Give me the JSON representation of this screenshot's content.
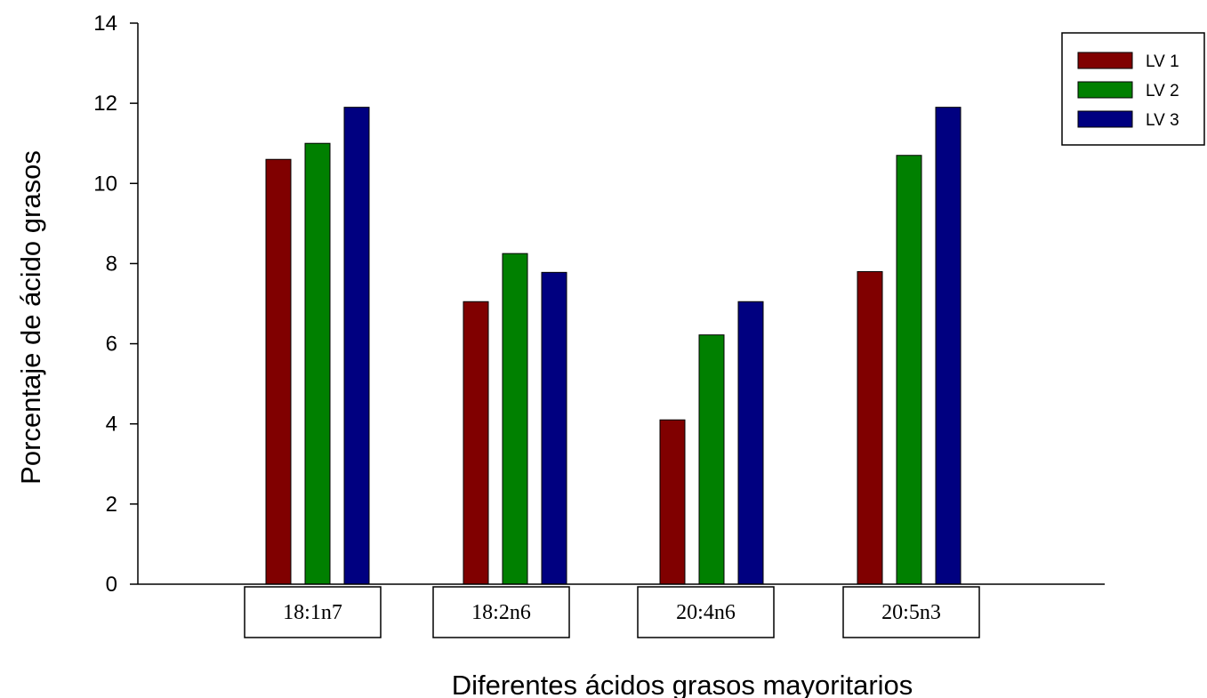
{
  "chart_data": {
    "type": "bar",
    "xlabel": "Diferentes ácidos grasos mayoritarios",
    "ylabel": "Porcentaje de ácido grasos",
    "ylim": [
      0,
      14
    ],
    "yticks": [
      0,
      2,
      4,
      6,
      8,
      10,
      12,
      14
    ],
    "categories": [
      "18:1n7",
      "18:2n6",
      "20:4n6",
      "20:5n3"
    ],
    "series": [
      {
        "name": "LV 1",
        "color": "#800000",
        "values": [
          10.6,
          7.05,
          4.1,
          7.8
        ]
      },
      {
        "name": "LV 2",
        "color": "#008000",
        "values": [
          11.0,
          8.25,
          6.22,
          10.7
        ]
      },
      {
        "name": "LV 3",
        "color": "#000080",
        "values": [
          11.9,
          7.78,
          7.05,
          11.9
        ]
      }
    ],
    "grid": false,
    "legend_position": "top-right"
  }
}
